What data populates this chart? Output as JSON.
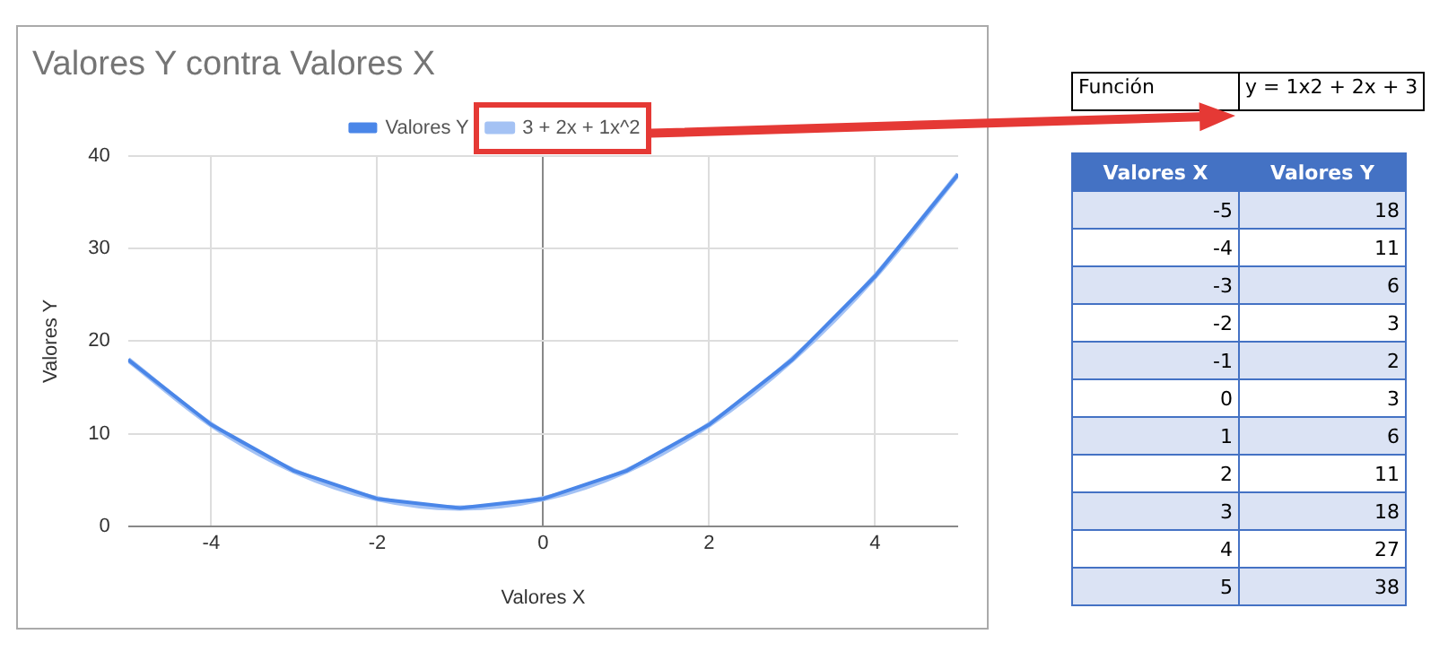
{
  "chart_data": {
    "type": "line",
    "title": "Valores Y contra Valores X",
    "xlabel": "Valores X",
    "ylabel": "Valores Y",
    "x": [
      -5,
      -4,
      -3,
      -2,
      -1,
      0,
      1,
      2,
      3,
      4,
      5
    ],
    "series": [
      {
        "name": "Valores Y",
        "color": "#4a86e8",
        "values": [
          18,
          11,
          6,
          3,
          2,
          3,
          6,
          11,
          18,
          27,
          38
        ]
      },
      {
        "name": "3 + 2x + 1x^2",
        "type": "line",
        "color": "#a4c2f4",
        "x": [
          -5,
          -4,
          -3,
          -2,
          -1,
          0,
          1,
          2,
          3,
          4,
          5
        ],
        "values": [
          18,
          11,
          6,
          3,
          2,
          3,
          6,
          11,
          18,
          27,
          38
        ]
      }
    ],
    "xlim": [
      -5,
      5
    ],
    "xticks": [
      -4,
      -2,
      0,
      2,
      4
    ],
    "ylim": [
      0,
      40
    ],
    "yticks": [
      0,
      10,
      20,
      30,
      40
    ],
    "grid": true,
    "legend": "top",
    "annotations": [
      "Función",
      "y = 1x2 + 2x + 3",
      "-5",
      "18",
      "-4",
      "11",
      "-3",
      "6",
      "-2",
      "3",
      "-1",
      "2",
      "0",
      "3",
      "1",
      "6",
      "2",
      "11",
      "3",
      "18",
      "4",
      "27",
      "5",
      "38"
    ]
  }
}
